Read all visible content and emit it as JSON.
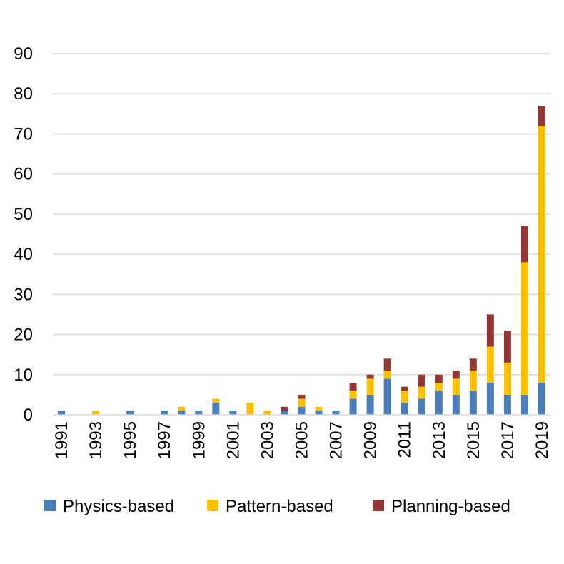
{
  "chart_data": {
    "type": "bar",
    "stacked": true,
    "title": "",
    "xlabel": "",
    "ylabel": "",
    "ylim": [
      0,
      90
    ],
    "yticks": [
      0,
      10,
      20,
      30,
      40,
      50,
      60,
      70,
      80,
      90
    ],
    "grid": "horizontal",
    "legend_position": "bottom",
    "categories": [
      "1991",
      "1992",
      "1993",
      "1994",
      "1995",
      "1996",
      "1997",
      "1998",
      "1999",
      "2000",
      "2001",
      "2002",
      "2003",
      "2004",
      "2005",
      "2006",
      "2007",
      "2008",
      "2009",
      "2010",
      "2011",
      "2012",
      "2013",
      "2014",
      "2015",
      "2016",
      "2017",
      "2018",
      "2019"
    ],
    "xtick_labels": [
      "1991",
      "1993",
      "1995",
      "1997",
      "1999",
      "2001",
      "2003",
      "2005",
      "2007",
      "2009",
      "2011",
      "2013",
      "2015",
      "2017",
      "2019"
    ],
    "series": [
      {
        "name": "Physics-based",
        "color": "#4a7ebb",
        "values": [
          1,
          0,
          0,
          0,
          1,
          0,
          1,
          1,
          1,
          3,
          1,
          0,
          0,
          1,
          2,
          1,
          1,
          4,
          5,
          9,
          3,
          4,
          6,
          5,
          6,
          8,
          5,
          5,
          8
        ]
      },
      {
        "name": "Pattern-based",
        "color": "#ffc000",
        "values": [
          0,
          0,
          1,
          0,
          0,
          0,
          0,
          1,
          0,
          1,
          0,
          3,
          1,
          0,
          2,
          1,
          0,
          2,
          4,
          2,
          3,
          3,
          2,
          4,
          5,
          9,
          8,
          33,
          64
        ]
      },
      {
        "name": "Planning-based",
        "color": "#953735",
        "values": [
          0,
          0,
          0,
          0,
          0,
          0,
          0,
          0,
          0,
          0,
          0,
          0,
          0,
          1,
          1,
          0,
          0,
          2,
          1,
          3,
          1,
          3,
          2,
          2,
          3,
          8,
          8,
          9,
          5
        ]
      }
    ]
  }
}
